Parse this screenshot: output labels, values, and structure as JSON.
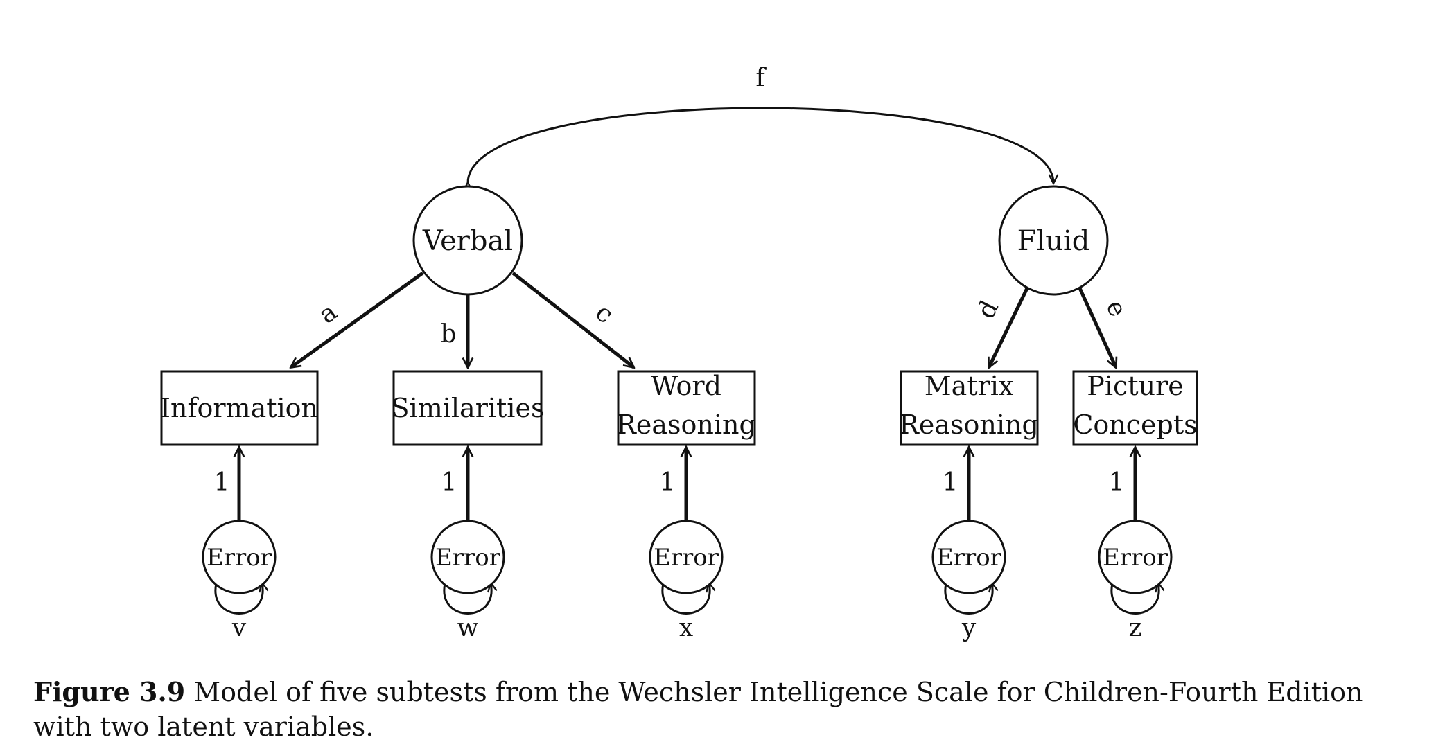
{
  "latent_factors": [
    {
      "id": "verbal",
      "label": "Verbal"
    },
    {
      "id": "fluid",
      "label": "Fluid"
    }
  ],
  "covariance_label": "f",
  "subtests": [
    {
      "id": "information",
      "lines": [
        "Information"
      ],
      "factor": "verbal",
      "loading_label": "a",
      "error_label": "Error",
      "error_path_label": "1",
      "variance_label": "v"
    },
    {
      "id": "similarities",
      "lines": [
        "Similarities"
      ],
      "factor": "verbal",
      "loading_label": "b",
      "error_label": "Error",
      "error_path_label": "1",
      "variance_label": "w"
    },
    {
      "id": "word-reasoning",
      "lines": [
        "Word",
        "Reasoning"
      ],
      "factor": "verbal",
      "loading_label": "c",
      "error_label": "Error",
      "error_path_label": "1",
      "variance_label": "x"
    },
    {
      "id": "matrix-reasoning",
      "lines": [
        "Matrix",
        "Reasoning"
      ],
      "factor": "fluid",
      "loading_label": "d",
      "error_label": "Error",
      "error_path_label": "1",
      "variance_label": "y"
    },
    {
      "id": "picture-concepts",
      "lines": [
        "Picture",
        "Concepts"
      ],
      "factor": "fluid",
      "loading_label": "e",
      "error_label": "Error",
      "error_path_label": "1",
      "variance_label": "z"
    }
  ],
  "caption": {
    "number": "Figure 3.9",
    "text": " Model of five subtests from the Wechsler Intelligence Scale for Children-Fourth Edition with two latent variables."
  }
}
